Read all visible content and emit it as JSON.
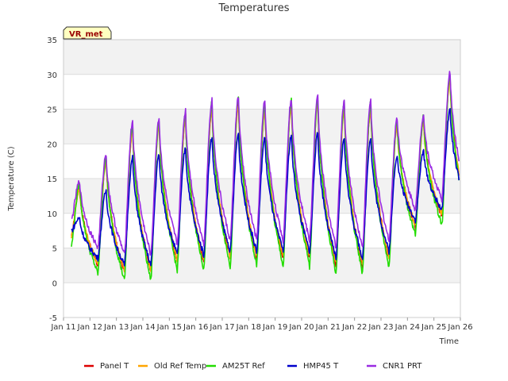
{
  "chart_data": {
    "type": "line",
    "title": "Temperatures",
    "xlabel": "Time",
    "ylabel": "Temperature (C)",
    "badge": "VR_met",
    "ylim": [
      -5,
      35
    ],
    "xlim": [
      11,
      26
    ],
    "yticks": [
      -5,
      0,
      5,
      10,
      15,
      20,
      25,
      30,
      35
    ],
    "xticks": [
      {
        "value": 11,
        "label": "Jan 11"
      },
      {
        "value": 12,
        "label": "Jan 12"
      },
      {
        "value": 13,
        "label": "Jan 13"
      },
      {
        "value": 14,
        "label": "Jan 14"
      },
      {
        "value": 15,
        "label": "Jan 15"
      },
      {
        "value": 16,
        "label": "Jan 16"
      },
      {
        "value": 17,
        "label": "Jan 17"
      },
      {
        "value": 18,
        "label": "Jan 18"
      },
      {
        "value": 19,
        "label": "Jan 19"
      },
      {
        "value": 20,
        "label": "Jan 20"
      },
      {
        "value": 21,
        "label": "Jan 21"
      },
      {
        "value": 22,
        "label": "Jan 22"
      },
      {
        "value": 23,
        "label": "Jan 23"
      },
      {
        "value": 24,
        "label": "Jan 24"
      },
      {
        "value": 25,
        "label": "Jan 25"
      },
      {
        "value": 26,
        "label": "Jan 26"
      }
    ],
    "x_start": 11.3,
    "days": [
      {
        "day": 11,
        "min": 6.5,
        "max": 13.8
      },
      {
        "day": 12,
        "min": 2.5,
        "max": 17.8
      },
      {
        "day": 13,
        "min": 1.5,
        "max": 22.5
      },
      {
        "day": 14,
        "min": 1.5,
        "max": 23.0
      },
      {
        "day": 15,
        "min": 3.0,
        "max": 24.0
      },
      {
        "day": 16,
        "min": 3.0,
        "max": 25.5
      },
      {
        "day": 17,
        "min": 3.5,
        "max": 26.0
      },
      {
        "day": 18,
        "min": 3.5,
        "max": 25.5
      },
      {
        "day": 19,
        "min": 3.5,
        "max": 25.8
      },
      {
        "day": 20,
        "min": 3.5,
        "max": 26.0
      },
      {
        "day": 21,
        "min": 2.5,
        "max": 25.5
      },
      {
        "day": 22,
        "min": 2.5,
        "max": 25.5
      },
      {
        "day": 23,
        "min": 3.5,
        "max": 23.0
      },
      {
        "day": 24,
        "min": 8.0,
        "max": 23.5
      },
      {
        "day": 25,
        "min": 9.5,
        "max": 29.5
      }
    ],
    "series": [
      {
        "name": "Panel T",
        "color": "#dd0000",
        "offset_min": 0.0,
        "offset_max": 0.0,
        "scale_max": 1.0
      },
      {
        "name": "Old Ref Temp",
        "color": "#ffa500",
        "offset_min": 0.2,
        "offset_max": -0.3,
        "scale_max": 1.0
      },
      {
        "name": "AM25T Ref",
        "color": "#22dd00",
        "offset_min": -1.2,
        "offset_max": 0.5,
        "scale_max": 1.0
      },
      {
        "name": "HMP45 T",
        "color": "#0000cc",
        "offset_min": 1.0,
        "offset_max": -4.5,
        "scale_max": 1.0
      },
      {
        "name": "CNR1 PRT",
        "color": "#9a2be2",
        "offset_min": 2.5,
        "offset_max": 0.8,
        "scale_max": 1.0
      }
    ]
  }
}
